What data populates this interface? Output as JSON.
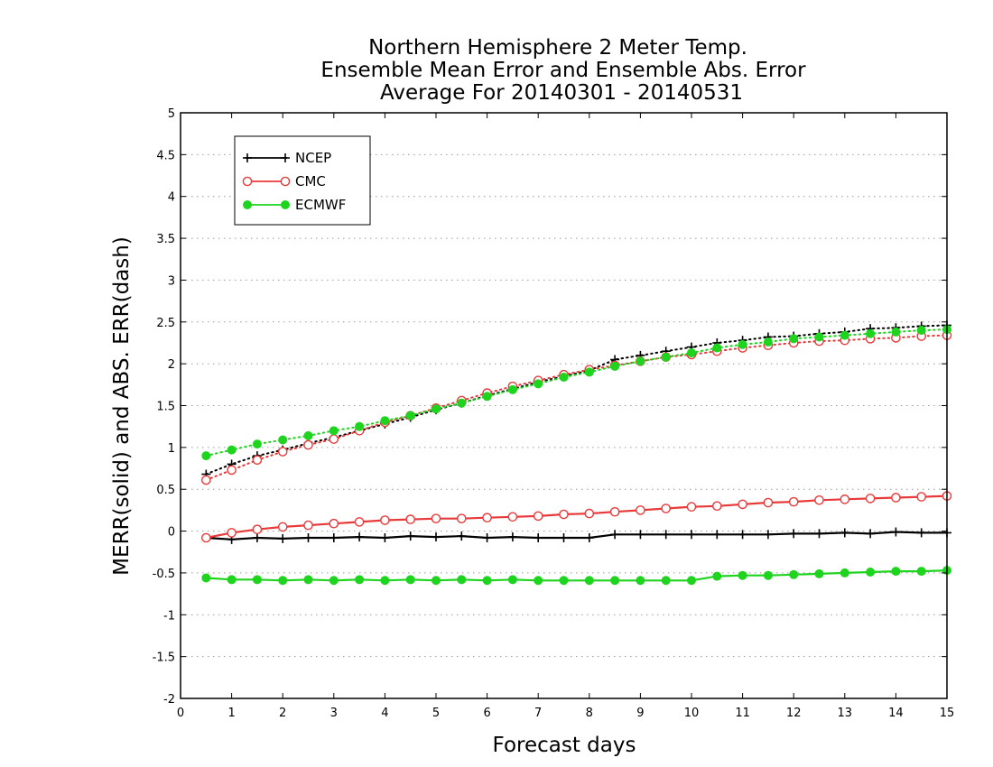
{
  "chart_data": {
    "type": "line",
    "title": [
      "Northern Hemisphere 2 Meter Temp.",
      "Ensemble Mean Error and Ensemble Abs. Error",
      "Average For 20140301 - 20140531"
    ],
    "xlabel": "Forecast days",
    "ylabel": "MERR(solid) and ABS. ERR(dash)",
    "xlim": [
      0,
      15
    ],
    "ylim": [
      -2,
      5
    ],
    "xticks": [
      0,
      1,
      2,
      3,
      4,
      5,
      6,
      7,
      8,
      9,
      10,
      11,
      12,
      13,
      14,
      15
    ],
    "xtick_labels": [
      "0",
      "1",
      "2",
      "3",
      "4",
      "5",
      "6",
      "7",
      "8",
      "9",
      "10",
      "11",
      "12",
      "13",
      "14",
      "15"
    ],
    "yticks": [
      -2,
      -1.5,
      -1,
      -0.5,
      0,
      0.5,
      1,
      1.5,
      2,
      2.5,
      3,
      3.5,
      4,
      4.5,
      5
    ],
    "ytick_labels": [
      "-2",
      "-1.5",
      "-1",
      "-0.5",
      "0",
      "0.5",
      "1",
      "1.5",
      "2",
      "2.5",
      "3",
      "3.5",
      "4",
      "4.5",
      "5"
    ],
    "grid": "horizontal dotted",
    "legend_position": "top-left",
    "x": [
      0.5,
      1,
      1.5,
      2,
      2.5,
      3,
      3.5,
      4,
      4.5,
      5,
      5.5,
      6,
      6.5,
      7,
      7.5,
      8,
      8.5,
      9,
      9.5,
      10,
      10.5,
      11,
      11.5,
      12,
      12.5,
      13,
      13.5,
      14,
      14.5,
      15
    ],
    "series": [
      {
        "name": "NCEP",
        "color": "#000000",
        "marker": "plus",
        "line": "solid",
        "legend": true,
        "values": [
          -0.08,
          -0.1,
          -0.08,
          -0.09,
          -0.08,
          -0.08,
          -0.07,
          -0.08,
          -0.06,
          -0.07,
          -0.06,
          -0.08,
          -0.07,
          -0.08,
          -0.08,
          -0.08,
          -0.04,
          -0.04,
          -0.04,
          -0.04,
          -0.04,
          -0.04,
          -0.04,
          -0.03,
          -0.03,
          -0.02,
          -0.03,
          -0.01,
          -0.02,
          -0.02
        ]
      },
      {
        "name": "CMC",
        "color": "#e83a3a",
        "marker": "open-circle",
        "line": "solid",
        "legend": true,
        "values": [
          -0.08,
          -0.02,
          0.02,
          0.05,
          0.07,
          0.09,
          0.11,
          0.13,
          0.14,
          0.15,
          0.15,
          0.16,
          0.17,
          0.18,
          0.2,
          0.21,
          0.23,
          0.25,
          0.27,
          0.29,
          0.3,
          0.32,
          0.34,
          0.35,
          0.37,
          0.38,
          0.39,
          0.4,
          0.41,
          0.42
        ]
      },
      {
        "name": "ECMWF",
        "color": "#1ed41e",
        "marker": "filled-circle",
        "line": "solid",
        "legend": true,
        "values": [
          -0.56,
          -0.58,
          -0.58,
          -0.59,
          -0.58,
          -0.59,
          -0.58,
          -0.59,
          -0.58,
          -0.59,
          -0.58,
          -0.59,
          -0.58,
          -0.59,
          -0.59,
          -0.59,
          -0.59,
          -0.59,
          -0.59,
          -0.59,
          -0.54,
          -0.53,
          -0.53,
          -0.52,
          -0.51,
          -0.5,
          -0.49,
          -0.48,
          -0.48,
          -0.47
        ]
      },
      {
        "name": "NCEP",
        "color": "#000000",
        "marker": "plus",
        "line": "dotted",
        "legend": false,
        "values": [
          0.68,
          0.8,
          0.9,
          0.97,
          1.05,
          1.12,
          1.2,
          1.28,
          1.36,
          1.45,
          1.53,
          1.62,
          1.7,
          1.78,
          1.85,
          1.92,
          2.05,
          2.1,
          2.15,
          2.2,
          2.25,
          2.28,
          2.32,
          2.33,
          2.36,
          2.38,
          2.42,
          2.43,
          2.45,
          2.46
        ]
      },
      {
        "name": "CMC",
        "color": "#e83a3a",
        "marker": "open-circle",
        "line": "dotted",
        "legend": false,
        "values": [
          0.61,
          0.73,
          0.85,
          0.95,
          1.03,
          1.1,
          1.2,
          1.3,
          1.38,
          1.47,
          1.56,
          1.65,
          1.73,
          1.8,
          1.87,
          1.93,
          1.98,
          2.03,
          2.08,
          2.11,
          2.15,
          2.19,
          2.22,
          2.25,
          2.27,
          2.28,
          2.3,
          2.31,
          2.33,
          2.34
        ]
      },
      {
        "name": "ECMWF",
        "color": "#1ed41e",
        "marker": "filled-circle",
        "line": "dotted",
        "legend": false,
        "values": [
          0.9,
          0.97,
          1.04,
          1.09,
          1.14,
          1.2,
          1.25,
          1.32,
          1.38,
          1.46,
          1.53,
          1.61,
          1.69,
          1.76,
          1.84,
          1.9,
          1.97,
          2.03,
          2.08,
          2.13,
          2.19,
          2.23,
          2.26,
          2.3,
          2.32,
          2.34,
          2.36,
          2.38,
          2.4,
          2.41
        ]
      }
    ]
  }
}
